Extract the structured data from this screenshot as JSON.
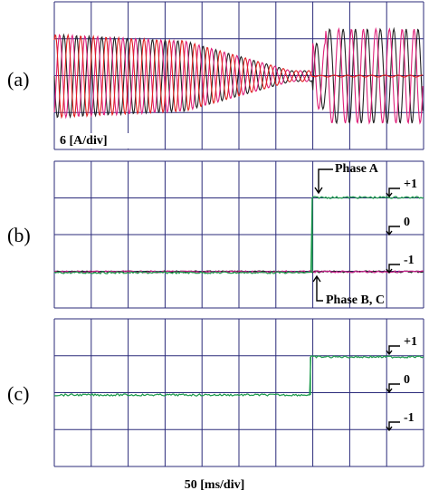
{
  "panels": [
    {
      "label": "(a)",
      "scale": "6 [A/div]"
    },
    {
      "label": "(b)",
      "annotations": [
        "Phase A",
        "Phase B, C"
      ],
      "levels": [
        "+1",
        "0",
        "-1"
      ]
    },
    {
      "label": "(c)",
      "levels": [
        "+1",
        "0",
        "-1"
      ]
    }
  ],
  "xlabel": "50 [ms/div]"
}
